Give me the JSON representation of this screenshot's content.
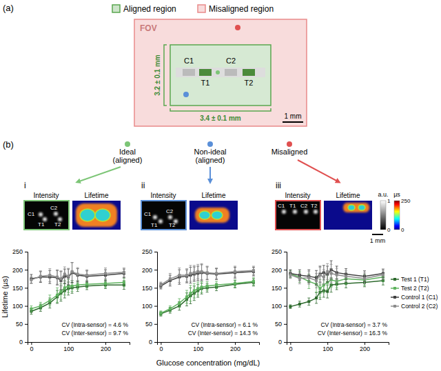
{
  "figure": {
    "panel_a": {
      "label": "(a)",
      "legend": [
        {
          "name": "Aligned region",
          "color": "#5aa64f"
        },
        {
          "name": "Misaligned region",
          "color": "#e98a8a"
        }
      ],
      "fov_label": "FOV",
      "height_label": "3.2 ± 0.1 mm",
      "width_label": "3.4 ± 0.1 mm",
      "scale_bar": "1 mm",
      "spots": [
        "C1",
        "C2",
        "T1",
        "T2"
      ]
    },
    "panel_b": {
      "label": "(b)",
      "cases": [
        {
          "name": "Ideal",
          "sub": "(aligned)",
          "numeral": "i",
          "color": "#7cc576",
          "spots": [
            "C1",
            "C2",
            "T1",
            "T2"
          ]
        },
        {
          "name": "Non-ideal",
          "sub": "(aligned)",
          "numeral": "ii",
          "color": "#5a8fd8",
          "spots": [
            "C1",
            "C2",
            "T1",
            "T2"
          ]
        },
        {
          "name": "Misaligned",
          "numeral": "iii",
          "color": "#e05050",
          "spots": [
            "C1",
            "T1",
            "C2",
            "T2"
          ]
        }
      ],
      "image_titles": [
        "Intensity",
        "Lifetime"
      ],
      "colorbars": [
        {
          "unit": "a.u.",
          "range": [
            0,
            1
          ],
          "ticks": [
            0,
            1
          ]
        },
        {
          "unit": "µs",
          "range": [
            0,
            250
          ],
          "ticks": [
            0,
            250
          ]
        }
      ],
      "scale_bar": "1 mm"
    }
  },
  "chart_data": [
    {
      "type": "line",
      "marker": "square",
      "ylabel": "Lifetime (µs)",
      "x": [
        0,
        25,
        50,
        70,
        80,
        90,
        100,
        110,
        125,
        150,
        200,
        250
      ],
      "xlim": [
        -10,
        265
      ],
      "xticks": [
        0,
        100,
        200
      ],
      "ylim": [
        0,
        250
      ],
      "yticks": [
        0,
        50,
        100,
        150,
        200,
        250
      ],
      "annotations": [
        "CV (Intra-sensor) = 4.6 %",
        "CV (Inter-sensor) = 9.7 %"
      ],
      "series": [
        {
          "color": "#2d6a2d",
          "values": [
            85,
            95,
            108,
            125,
            135,
            142,
            148,
            150,
            152,
            155,
            158,
            158
          ],
          "errors": [
            8,
            10,
            14,
            18,
            22,
            20,
            18,
            15,
            12,
            10,
            10,
            12
          ]
        },
        {
          "color": "#5fb35f",
          "values": [
            92,
            100,
            115,
            130,
            140,
            150,
            155,
            155,
            158,
            160,
            162,
            165
          ],
          "errors": [
            8,
            10,
            15,
            20,
            22,
            20,
            18,
            15,
            12,
            10,
            10,
            12
          ]
        },
        {
          "color": "#404040",
          "values": [
            175,
            180,
            180,
            178,
            170,
            182,
            180,
            192,
            185,
            182,
            185,
            190
          ],
          "errors": [
            12,
            15,
            18,
            20,
            25,
            20,
            22,
            28,
            18,
            15,
            15,
            12
          ]
        },
        {
          "color": "#8c8c8c",
          "values": [
            172,
            182,
            185,
            180,
            175,
            188,
            182,
            195,
            188,
            185,
            190,
            193
          ],
          "errors": [
            10,
            15,
            18,
            20,
            22,
            20,
            22,
            25,
            18,
            15,
            15,
            12
          ]
        }
      ]
    },
    {
      "type": "line",
      "marker": "square",
      "xlabel": "Glucose concentration (mg/dL)",
      "x": [
        0,
        25,
        50,
        70,
        80,
        90,
        100,
        110,
        125,
        150,
        200,
        250
      ],
      "xlim": [
        -10,
        265
      ],
      "xticks": [
        0,
        100,
        200
      ],
      "ylim": [
        0,
        250
      ],
      "yticks": [
        0,
        50,
        100,
        150,
        200,
        250
      ],
      "annotations": [
        "CV (Intra-sensor) = 6.1 %",
        "CV (Inter-sensor) = 14.3 %"
      ],
      "series": [
        {
          "color": "#2d6a2d",
          "values": [
            78,
            88,
            100,
            118,
            128,
            135,
            142,
            148,
            150,
            152,
            160,
            165
          ],
          "errors": [
            6,
            8,
            12,
            18,
            22,
            20,
            18,
            15,
            12,
            10,
            10,
            10
          ]
        },
        {
          "color": "#5fb35f",
          "values": [
            80,
            92,
            108,
            125,
            135,
            142,
            148,
            152,
            155,
            158,
            162,
            168
          ],
          "errors": [
            6,
            8,
            12,
            18,
            22,
            20,
            18,
            15,
            12,
            10,
            10,
            10
          ]
        },
        {
          "color": "#404040",
          "values": [
            155,
            170,
            180,
            182,
            185,
            188,
            190,
            192,
            190,
            188,
            192,
            195
          ],
          "errors": [
            8,
            15,
            20,
            18,
            22,
            20,
            20,
            22,
            18,
            15,
            15,
            12
          ]
        },
        {
          "color": "#8c8c8c",
          "values": [
            158,
            175,
            185,
            185,
            190,
            192,
            195,
            195,
            192,
            190,
            195,
            198
          ],
          "errors": [
            8,
            15,
            20,
            18,
            22,
            20,
            20,
            22,
            18,
            15,
            15,
            12
          ]
        }
      ]
    },
    {
      "type": "line",
      "marker": "square",
      "legend": "right",
      "x": [
        0,
        25,
        50,
        70,
        80,
        90,
        100,
        110,
        125,
        150,
        200,
        250
      ],
      "xlim": [
        -10,
        265
      ],
      "xticks": [
        0,
        100,
        200
      ],
      "ylim": [
        0,
        250
      ],
      "yticks": [
        0,
        50,
        100,
        150,
        200,
        250
      ],
      "annotations": [
        "CV (Intra-sensor) = 3.7 %",
        "CV (Inter-sensor) = 16.3 %"
      ],
      "series": [
        {
          "name": "Test 1 (T1)",
          "color": "#2d6a2d",
          "values": [
            98,
            105,
            112,
            122,
            138,
            142,
            140,
            158,
            160,
            162,
            165,
            170
          ],
          "errors": [
            5,
            8,
            10,
            15,
            20,
            18,
            18,
            20,
            15,
            12,
            12,
            12
          ]
        },
        {
          "name": "Test 2 (T2)",
          "color": "#5fb35f",
          "values": [
            188,
            180,
            168,
            160,
            148,
            158,
            165,
            172,
            168,
            175,
            172,
            180
          ],
          "errors": [
            10,
            15,
            20,
            22,
            25,
            22,
            20,
            20,
            18,
            15,
            15,
            12
          ]
        },
        {
          "name": "Control 1 (C1)",
          "color": "#404040",
          "values": [
            190,
            185,
            182,
            178,
            188,
            192,
            188,
            200,
            192,
            188,
            182,
            190
          ],
          "errors": [
            10,
            15,
            18,
            20,
            22,
            20,
            22,
            25,
            18,
            15,
            15,
            12
          ]
        },
        {
          "name": "Control 2 (C2)",
          "color": "#8c8c8c",
          "values": [
            186,
            176,
            178,
            170,
            185,
            180,
            195,
            190,
            186,
            182,
            176,
            186
          ],
          "errors": [
            10,
            15,
            18,
            20,
            22,
            20,
            22,
            25,
            18,
            15,
            15,
            12
          ]
        }
      ]
    }
  ]
}
